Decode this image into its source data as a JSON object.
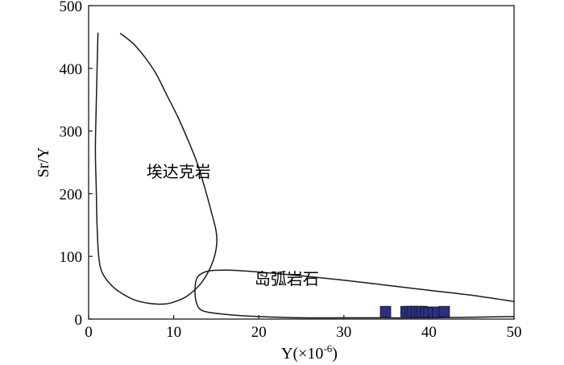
{
  "chart_data": {
    "type": "scatter",
    "title": "",
    "xlabel_main": "Y(×10",
    "xlabel_exp": "-6",
    "xlabel_close": ")",
    "ylabel": "Sr/Y",
    "xlim": [
      0,
      50
    ],
    "ylim": [
      0,
      500
    ],
    "x_ticks": [
      0,
      10,
      20,
      30,
      40,
      50
    ],
    "y_ticks": [
      0,
      100,
      200,
      300,
      400,
      500
    ],
    "grid": false,
    "regions": [
      {
        "label": "埃达克岩",
        "label_pos": [
          6.8,
          226
        ],
        "outline": [
          [
            3.7,
            456
          ],
          [
            5.2,
            440
          ],
          [
            6.6,
            418
          ],
          [
            7.9,
            392
          ],
          [
            9.2,
            357
          ],
          [
            10.5,
            322
          ],
          [
            11.6,
            288
          ],
          [
            12.7,
            251
          ],
          [
            13.6,
            212
          ],
          [
            14.4,
            172
          ],
          [
            15.0,
            139
          ],
          [
            15.0,
            113
          ],
          [
            14.4,
            85
          ],
          [
            13.2,
            57
          ],
          [
            11.6,
            37
          ],
          [
            10.2,
            28
          ],
          [
            9.0,
            24
          ],
          [
            7.2,
            25
          ],
          [
            5.5,
            30
          ],
          [
            3.9,
            41
          ],
          [
            2.6,
            55
          ],
          [
            1.6,
            74
          ],
          [
            1.2,
            98
          ],
          [
            1.0,
            145
          ],
          [
            0.9,
            205
          ],
          [
            0.8,
            270
          ],
          [
            0.9,
            345
          ],
          [
            1.0,
            405
          ],
          [
            1.1,
            457
          ]
        ]
      },
      {
        "label": "岛弧岩石",
        "label_pos": [
          19.5,
          55
        ],
        "outline": [
          [
            50,
            28
          ],
          [
            45,
            38
          ],
          [
            40,
            46
          ],
          [
            35,
            54
          ],
          [
            30,
            62
          ],
          [
            25,
            69
          ],
          [
            20,
            75
          ],
          [
            16.5,
            78
          ],
          [
            14.2,
            77
          ],
          [
            13.0,
            70
          ],
          [
            12.6,
            60
          ],
          [
            12.5,
            45
          ],
          [
            12.6,
            30
          ],
          [
            13.0,
            17
          ],
          [
            14.0,
            11
          ],
          [
            16.5,
            7
          ],
          [
            20,
            4
          ],
          [
            25,
            2
          ],
          [
            30,
            2
          ],
          [
            35,
            2
          ],
          [
            40,
            2
          ],
          [
            45,
            3
          ],
          [
            50,
            4
          ]
        ]
      }
    ],
    "points": [
      {
        "x": 34.9,
        "y": 12
      },
      {
        "x": 37.3,
        "y": 12
      },
      {
        "x": 37.8,
        "y": 12
      },
      {
        "x": 38.1,
        "y": 12
      },
      {
        "x": 38.5,
        "y": 12
      },
      {
        "x": 38.9,
        "y": 12
      },
      {
        "x": 39.2,
        "y": 12
      },
      {
        "x": 39.6,
        "y": 11
      },
      {
        "x": 40.0,
        "y": 11
      },
      {
        "x": 40.5,
        "y": 10
      },
      {
        "x": 41.0,
        "y": 11
      },
      {
        "x": 41.8,
        "y": 12
      }
    ],
    "point_color": "#2e2f82",
    "point_edge": "#111133",
    "line_color": "#1a1a1a"
  }
}
